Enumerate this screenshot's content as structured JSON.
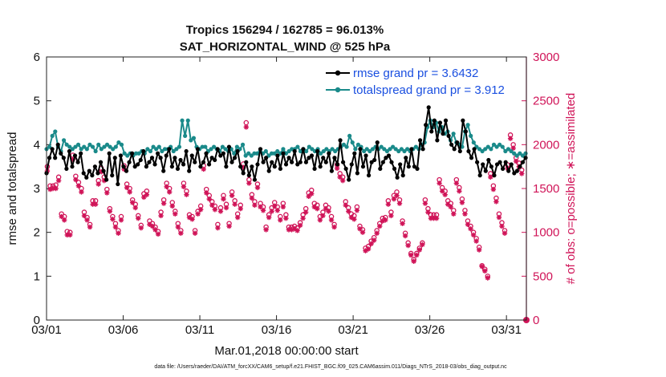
{
  "chart_data": {
    "type": "line",
    "title": "Tropics 156294 / 162785 = 96.013%",
    "subtitle": "SAT_HORIZONTAL_WIND @ 525 hPa",
    "xlabel": "Mar.01,2018 00:00:00 start",
    "ylabel": "rmse and totalspread",
    "ylabel_right": "# of obs: o=possible; ∗=assimilated",
    "footnote": "data file: /Users/raeder/DAI/ATM_forcXX/CAM6_setup/f.e21.FHIST_BGC.f09_025.CAM6assim.011/Diags_NTrS_2018-03/obs_diag_output.nc",
    "x_range_days": [
      0,
      31.3
    ],
    "x_ticks": [
      {
        "day": 0,
        "label": "03/01"
      },
      {
        "day": 5,
        "label": "03/06"
      },
      {
        "day": 10,
        "label": "03/11"
      },
      {
        "day": 15,
        "label": "03/16"
      },
      {
        "day": 20,
        "label": "03/21"
      },
      {
        "day": 25,
        "label": "03/26"
      },
      {
        "day": 30,
        "label": "03/31"
      }
    ],
    "ylim": [
      0,
      6
    ],
    "y_ticks": [
      "0",
      "1",
      "2",
      "3",
      "4",
      "5",
      "6"
    ],
    "ylim_right": [
      0,
      3000
    ],
    "y_ticks_right": [
      "0",
      "500",
      "1000",
      "1500",
      "2000",
      "2500",
      "3000"
    ],
    "legend_location": "top-right",
    "colors": {
      "rmse": "#000000",
      "totalspread": "#1a8a8a",
      "obs": "#d01458",
      "legend_text": "#1a4fe0"
    },
    "series": [
      {
        "name": "rmse grand pr = 3.6432",
        "key": "rmse",
        "values": [
          3.35,
          3.7,
          3.9,
          3.7,
          4.0,
          3.8,
          3.7,
          3.45,
          3.85,
          3.5,
          3.75,
          3.6,
          3.8,
          3.35,
          3.25,
          3.4,
          3.3,
          3.5,
          3.35,
          3.6,
          3.4,
          3.2,
          3.8,
          3.3,
          3.7,
          3.1,
          3.75,
          3.5,
          3.4,
          3.6,
          3.8,
          3.5,
          3.55,
          3.65,
          3.85,
          3.5,
          3.6,
          3.7,
          3.55,
          3.8,
          3.7,
          3.4,
          3.75,
          3.9,
          3.5,
          3.7,
          3.45,
          3.65,
          3.55,
          3.85,
          3.4,
          3.75,
          3.6,
          3.9,
          3.5,
          3.6,
          3.8,
          3.55,
          3.7,
          3.65,
          3.9,
          3.75,
          3.8,
          3.5,
          3.95,
          3.6,
          3.7,
          3.85,
          3.5,
          3.35,
          3.6,
          3.3,
          3.5,
          3.2,
          3.55,
          3.9,
          3.6,
          3.7,
          3.4,
          3.6,
          3.5,
          3.75,
          3.45,
          3.8,
          3.55,
          3.7,
          3.6,
          3.85,
          3.55,
          3.6,
          3.9,
          3.6,
          3.7,
          3.75,
          3.45,
          3.85,
          3.5,
          3.7,
          3.6,
          3.8,
          3.4,
          3.7,
          3.55,
          4.1,
          3.6,
          3.45,
          3.2,
          3.55,
          3.8,
          3.35,
          3.9,
          3.5,
          3.75,
          3.3,
          3.6,
          3.65,
          4.05,
          3.45,
          3.6,
          3.7,
          3.75,
          3.6,
          3.45,
          3.25,
          3.55,
          3.3,
          3.7,
          3.5,
          3.9,
          3.5,
          3.45,
          4.1,
          3.9,
          4.45,
          4.85,
          4.3,
          4.55,
          4.1,
          4.5,
          4.25,
          4.55,
          4.2,
          4.0,
          3.9,
          4.05,
          3.85,
          4.55,
          4.3,
          3.85,
          3.7,
          3.9,
          3.6,
          3.3,
          3.55,
          3.4,
          3.65,
          3.5,
          3.3,
          3.55,
          3.6,
          3.45,
          3.6,
          3.4,
          3.55,
          3.35,
          3.4,
          3.5,
          3.6,
          3.7
        ]
      },
      {
        "name": "totalspread grand pr = 3.912",
        "key": "totalspread",
        "values": [
          3.9,
          3.95,
          4.2,
          4.3,
          3.95,
          3.85,
          4.1,
          4.0,
          3.95,
          3.9,
          3.95,
          4.0,
          3.9,
          3.95,
          3.9,
          4.0,
          3.95,
          3.85,
          4.0,
          3.9,
          3.95,
          4.0,
          3.95,
          3.9,
          3.95,
          4.05,
          4.0,
          3.8,
          3.75,
          3.8,
          3.75,
          3.8,
          3.8,
          3.85,
          3.8,
          3.9,
          3.85,
          3.95,
          3.9,
          3.95,
          3.85,
          3.9,
          3.9,
          3.95,
          3.85,
          3.9,
          3.95,
          4.55,
          4.2,
          4.55,
          4.1,
          4.15,
          3.95,
          3.9,
          3.95,
          3.95,
          3.85,
          3.9,
          3.95,
          3.9,
          3.85,
          3.95,
          3.9,
          3.85,
          3.9,
          3.8,
          3.95,
          3.9,
          4.0,
          3.75,
          3.8,
          3.75,
          3.8,
          3.8,
          3.85,
          3.8,
          3.85,
          3.75,
          3.8,
          3.8,
          3.85,
          3.8,
          3.9,
          3.8,
          3.85,
          3.9,
          3.9,
          3.95,
          3.85,
          3.9,
          3.85,
          3.95,
          3.9,
          3.85,
          3.9,
          3.8,
          3.85,
          3.9,
          3.85,
          3.9,
          3.85,
          3.9,
          3.95,
          4.0,
          3.95,
          4.2,
          4.05,
          3.9,
          4.0,
          3.95,
          3.85,
          3.9,
          3.85,
          3.9,
          3.95,
          3.9,
          3.95,
          3.9,
          3.85,
          3.9,
          3.95,
          3.9,
          3.85,
          3.9,
          3.85,
          3.9,
          3.85,
          3.9,
          3.95,
          3.9,
          4.0,
          4.05,
          4.4,
          4.55,
          4.4,
          4.5,
          4.3,
          4.4,
          4.25,
          4.3,
          4.1,
          4.25,
          4.05,
          4.0,
          3.95,
          4.3,
          4.45,
          4.2,
          4.05,
          3.95,
          3.9,
          3.85,
          3.9,
          3.95,
          3.9,
          4.0,
          3.95,
          4.0,
          3.95,
          3.85,
          3.9,
          3.85,
          3.8,
          3.75,
          3.8,
          3.75,
          3.8
        ]
      },
      {
        "name": "possible",
        "key": "possible",
        "values": [
          1750,
          1530,
          1530,
          1540,
          1630,
          1210,
          1180,
          1010,
          1000,
          1880,
          1640,
          1570,
          1500,
          1230,
          1170,
          1090,
          1360,
          1360,
          1590,
          1730,
          1630,
          1490,
          1270,
          1180,
          1100,
          1020,
          1180,
          1760,
          1550,
          1500,
          1370,
          1320,
          1190,
          1080,
          1440,
          1470,
          1130,
          1100,
          1060,
          1010,
          1230,
          1370,
          1560,
          1500,
          1340,
          1240,
          1100,
          1020,
          1560,
          1470,
          1200,
          1180,
          1020,
          1240,
          1300,
          1760,
          1490,
          1420,
          1350,
          1300,
          1090,
          1280,
          1420,
          1320,
          1100,
          1460,
          1360,
          1210,
          1310,
          1780,
          2250,
          1600,
          1430,
          1350,
          1550,
          1330,
          1290,
          1060,
          1200,
          1280,
          1340,
          1290,
          1180,
          1330,
          1200,
          1060,
          1060,
          1070,
          1050,
          1110,
          1200,
          1270,
          1450,
          1480,
          1330,
          1310,
          1180,
          1230,
          1310,
          1280,
          1180,
          1090,
          1770,
          1670,
          1630,
          1350,
          1280,
          1210,
          1190,
          1290,
          1070,
          1030,
          820,
          840,
          900,
          940,
          1020,
          1100,
          1160,
          1170,
          1360,
          1230,
          1420,
          1460,
          1370,
          1130,
          990,
          880,
          760,
          690,
          760,
          820,
          880,
          1370,
          1270,
          1200,
          1200,
          1200,
          1600,
          1510,
          1470,
          1360,
          1330,
          1250,
          1600,
          1510,
          1380,
          1250,
          1130,
          1070,
          1000,
          930,
          830,
          620,
          580,
          500,
          1670,
          1530,
          1390,
          1210,
          1110,
          1020,
          1770,
          2110,
          2000,
          1850,
          1790,
          1710
        ]
      },
      {
        "name": "assimilated",
        "key": "assimilated",
        "values": [
          1700,
          1490,
          1500,
          1500,
          1590,
          1180,
          1140,
          970,
          970,
          1830,
          1600,
          1530,
          1460,
          1190,
          1140,
          1060,
          1320,
          1320,
          1550,
          1690,
          1590,
          1450,
          1240,
          1150,
          1060,
          990,
          1140,
          1720,
          1510,
          1460,
          1340,
          1280,
          1160,
          1050,
          1400,
          1430,
          1090,
          1070,
          1030,
          980,
          1190,
          1330,
          1520,
          1460,
          1300,
          1210,
          1060,
          990,
          1520,
          1430,
          1170,
          1150,
          990,
          1210,
          1260,
          1720,
          1450,
          1380,
          1310,
          1260,
          1050,
          1240,
          1380,
          1280,
          1070,
          1420,
          1320,
          1170,
          1270,
          1740,
          2200,
          1560,
          1390,
          1310,
          1510,
          1290,
          1250,
          1030,
          1170,
          1240,
          1300,
          1250,
          1140,
          1290,
          1160,
          1030,
          1030,
          1040,
          1020,
          1080,
          1160,
          1230,
          1410,
          1440,
          1290,
          1270,
          1140,
          1190,
          1270,
          1240,
          1140,
          1060,
          1730,
          1630,
          1590,
          1310,
          1240,
          1170,
          1150,
          1250,
          1040,
          1000,
          790,
          810,
          870,
          910,
          990,
          1070,
          1130,
          1140,
          1320,
          1190,
          1380,
          1420,
          1330,
          1100,
          960,
          850,
          740,
          670,
          740,
          800,
          860,
          1330,
          1230,
          1160,
          1160,
          1160,
          1560,
          1470,
          1430,
          1320,
          1290,
          1210,
          1560,
          1470,
          1340,
          1210,
          1090,
          1040,
          970,
          900,
          800,
          610,
          560,
          480,
          1630,
          1490,
          1350,
          1170,
          1070,
          990,
          1730,
          2070,
          1960,
          1810,
          1750,
          1670
        ]
      }
    ],
    "last_obs_count": 0
  }
}
